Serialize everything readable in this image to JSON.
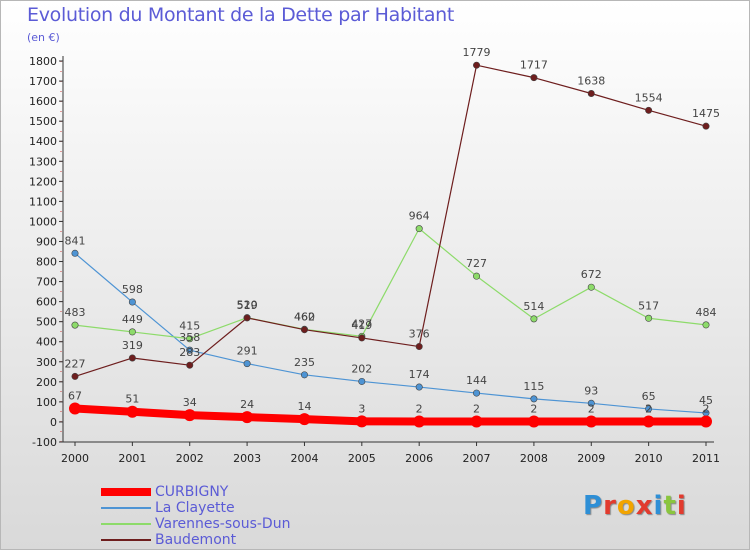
{
  "title": "Evolution du Montant de la Dette par Habitant",
  "subtitle": "(en €)",
  "logo_text": "Proxiti",
  "chart_data": {
    "type": "line",
    "title": "Evolution du Montant de la Dette par Habitant",
    "subtitle": "(en €)",
    "x": [
      "2000",
      "2001",
      "2002",
      "2003",
      "2004",
      "2005",
      "2006",
      "2007",
      "2008",
      "2009",
      "2010",
      "2011"
    ],
    "ylim": [
      -100,
      1800
    ],
    "yticks": [
      -100,
      0,
      100,
      200,
      300,
      400,
      500,
      600,
      700,
      800,
      900,
      1000,
      1100,
      1200,
      1300,
      1400,
      1500,
      1600,
      1700,
      1800
    ],
    "grid": false,
    "legend_position": "bottom-left",
    "series": [
      {
        "name": "CURBIGNY",
        "color": "#ff0000",
        "values": [
          67,
          51,
          34,
          24,
          14,
          3,
          2,
          2,
          2,
          2,
          2,
          2
        ],
        "labels": [
          "67",
          "51",
          "34",
          "24",
          "14",
          "3",
          "2",
          "2",
          "2",
          "2",
          "2",
          "2"
        ]
      },
      {
        "name": "La Clayette",
        "color": "#4e94d4",
        "values": [
          841,
          598,
          358,
          291,
          235,
          202,
          174,
          144,
          115,
          93,
          65,
          45
        ],
        "labels": [
          "841",
          "598",
          "358",
          "291",
          "235",
          "202",
          "174",
          "144",
          "115",
          "93",
          "65",
          "45"
        ]
      },
      {
        "name": "Varennes-sous-Dun",
        "color": "#8ddb6a",
        "values": [
          483,
          449,
          415,
          520,
          462,
          427,
          964,
          727,
          514,
          672,
          517,
          484
        ],
        "labels": [
          "483",
          "449",
          "415",
          "520",
          "462",
          "427",
          "964",
          "727",
          "514",
          "672",
          "517",
          "484"
        ]
      },
      {
        "name": "Baudemont",
        "color": "#6e1e1e",
        "values": [
          227,
          319,
          283,
          519,
          460,
          419,
          376,
          1779,
          1717,
          1638,
          1554,
          1475
        ],
        "labels": [
          "227",
          "319",
          "283",
          "519",
          "460",
          "419",
          "376",
          "1779",
          "1717",
          "1638",
          "1554",
          "1475"
        ]
      }
    ]
  }
}
